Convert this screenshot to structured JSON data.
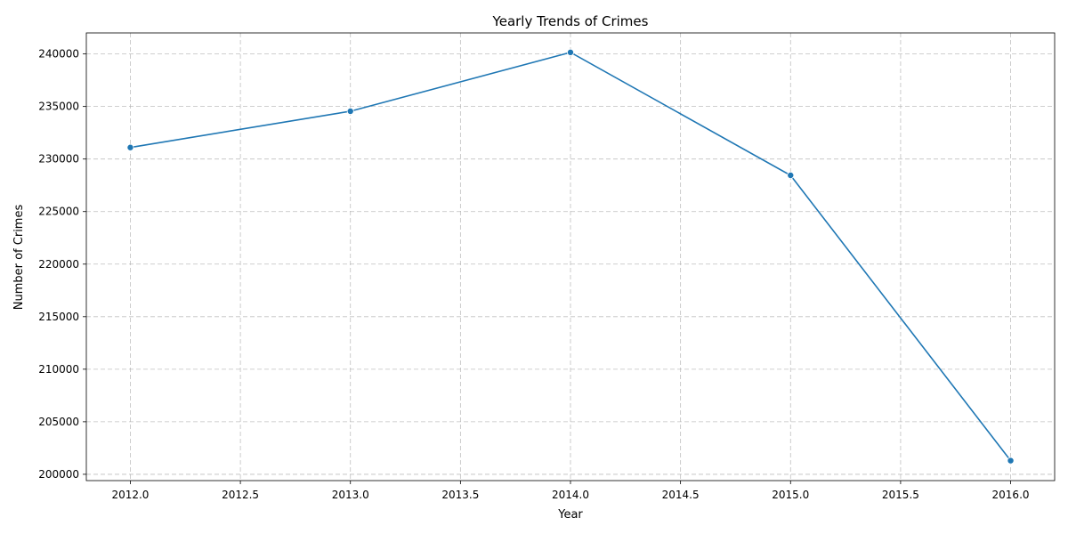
{
  "chart_data": {
    "type": "line",
    "title": "Yearly Trends of Crimes",
    "xlabel": "Year",
    "ylabel": "Number of Crimes",
    "xlim": [
      2011.8,
      2016.2
    ],
    "ylim": [
      199400,
      242000
    ],
    "xticks": [
      2012.0,
      2012.5,
      2013.0,
      2013.5,
      2014.0,
      2014.5,
      2015.0,
      2015.5,
      2016.0
    ],
    "xtick_labels": [
      "2012.0",
      "2012.5",
      "2013.0",
      "2013.5",
      "2014.0",
      "2014.5",
      "2015.0",
      "2015.5",
      "2016.0"
    ],
    "yticks": [
      200000,
      205000,
      210000,
      215000,
      220000,
      225000,
      230000,
      235000,
      240000
    ],
    "ytick_labels": [
      "200000",
      "205000",
      "210000",
      "215000",
      "220000",
      "225000",
      "230000",
      "235000",
      "240000"
    ],
    "grid": true,
    "series": [
      {
        "color": "#1f77b4",
        "marker": "circle",
        "x": [
          2012,
          2013,
          2014,
          2015,
          2016
        ],
        "y": [
          231100,
          234550,
          240150,
          228450,
          201300
        ]
      }
    ]
  }
}
